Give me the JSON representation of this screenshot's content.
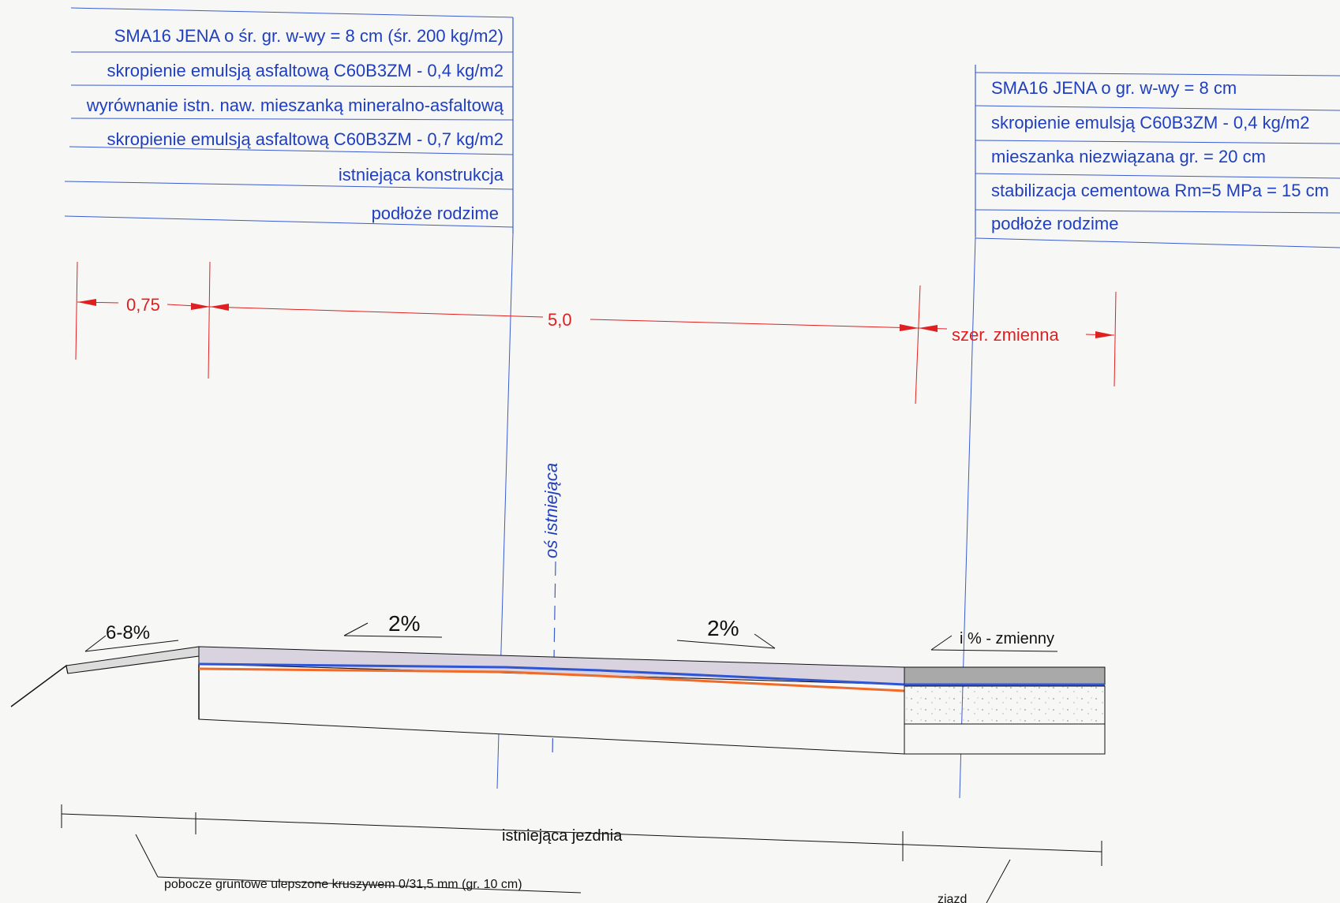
{
  "left_layers": [
    "SMA16 JENA o śr. gr. w-wy = 8 cm (śr. 200 kg/m2)",
    "skropienie emulsją asfaltową C60B3ZM - 0,4 kg/m2",
    "wyrównanie istn. naw. mieszanką mineralno-asfaltową",
    "skropienie emulsją asfaltową C60B3ZM - 0,7 kg/m2",
    "istniejąca konstrukcja",
    "podłoże rodzime"
  ],
  "right_layers": [
    "SMA16 JENA o gr. w-wy = 8 cm",
    "skropienie emulsją C60B3ZM - 0,4 kg/m2",
    "mieszanka niezwiązana gr. = 20 cm",
    "stabilizacja cementowa Rm=5 MPa = 15 cm",
    "podłoże rodzime"
  ],
  "dimensions": {
    "shoulder_width": "0,75",
    "road_width": "5,0",
    "driveway_width": "szer. zmienna"
  },
  "slopes": {
    "shoulder": "6-8%",
    "left_lane": "2%",
    "right_lane": "2%",
    "driveway": "i % - zmienny"
  },
  "axis_label": "oś istniejąca",
  "bottom_labels": {
    "roadway": "istniejąca jezdnia",
    "shoulder": "pobocze gruntowe ulepszone kruszywem 0/31,5 mm (gr. 10 cm)",
    "driveway": "ziazd"
  },
  "colors": {
    "annotation_blue": "#1f3fbf",
    "dimension_red": "#e02020",
    "asphalt_blue": "#2f55d4",
    "asphalt_orange": "#f06a2a",
    "wearing_course": "#d8d3df",
    "driveway_course": "#a9a9a9"
  }
}
